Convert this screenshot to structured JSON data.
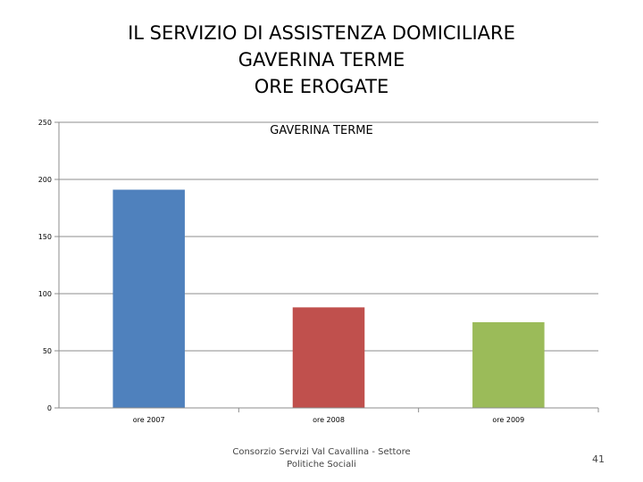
{
  "slide": {
    "title_lines": [
      "IL SERVIZIO DI ASSISTENZA DOMICILIARE",
      "GAVERINA TERME",
      "ORE EROGATE"
    ],
    "footer_line1": "Consorzio Servizi Val Cavallina - Settore",
    "footer_line2": "Politiche Sociali",
    "page_number": "41"
  },
  "chart_data": {
    "type": "bar",
    "title": "GAVERINA TERME",
    "categories": [
      "ore 2007",
      "ore 2008",
      "ore 2009"
    ],
    "values": [
      191,
      88,
      75
    ],
    "colors": [
      "#4F81BD",
      "#C0504D",
      "#9BBB59"
    ],
    "ylim": [
      0,
      250
    ],
    "yticks": [
      0,
      50,
      100,
      150,
      200,
      250
    ],
    "grid": true,
    "xlabel": "",
    "ylabel": ""
  }
}
